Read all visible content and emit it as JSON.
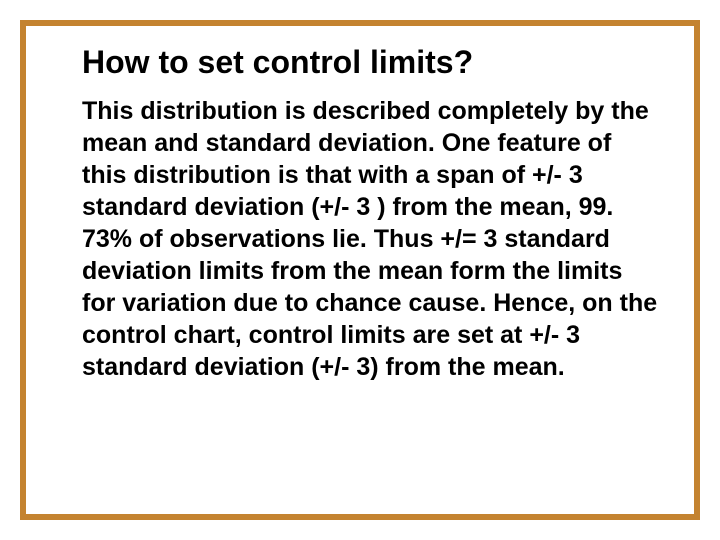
{
  "slide": {
    "title": "How to set control limits?",
    "body": "This distribution is described completely by the mean and standard deviation.  One feature of this distribution is that with a span of +/- 3 standard deviation (+/- 3 ) from the mean, 99. 73% of observations lie.  Thus +/= 3 standard deviation limits from the mean form the limits for variation due to chance cause.  Hence, on the control chart, control limits are set at +/- 3 standard deviation (+/- 3) from the mean.",
    "title_fontsize": 32,
    "body_fontsize": 25,
    "title_color": "#000000",
    "body_color": "#000000",
    "border_color": "#c48330",
    "border_width": 6,
    "background_color": "#ffffff",
    "font_family": "Arial"
  }
}
